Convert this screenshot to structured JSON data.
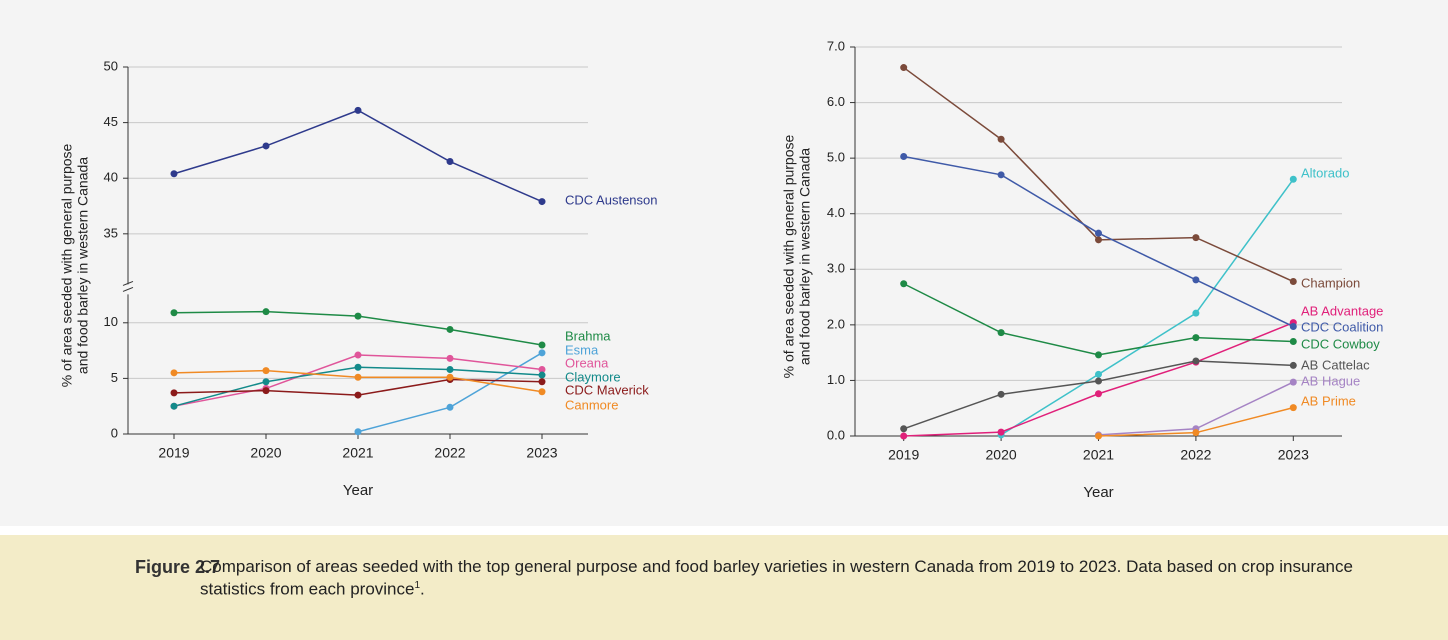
{
  "chart_data": [
    {
      "type": "line",
      "ylabel": [
        "% of area seeded with general purpose",
        "and food barley in western Canada"
      ],
      "xlabel": "Year",
      "categories": [
        "2019",
        "2020",
        "2021",
        "2022",
        "2023"
      ],
      "ylim": [
        0,
        50
      ],
      "ybreak": [
        13,
        30
      ],
      "yticks": [
        0,
        5,
        10,
        35,
        40,
        45,
        50
      ],
      "grid": true,
      "series": [
        {
          "name": "CDC Austenson",
          "color": "#2e3a8c",
          "values": [
            40.4,
            42.9,
            46.1,
            41.5,
            37.9
          ]
        },
        {
          "name": "Brahma",
          "color": "#1e8a46",
          "values": [
            10.9,
            11.0,
            10.6,
            9.4,
            8.0
          ]
        },
        {
          "name": "Esma",
          "color": "#4ea3d8",
          "values": [
            null,
            null,
            0.2,
            2.4,
            7.3
          ]
        },
        {
          "name": "Oreana",
          "color": "#e0559a",
          "values": [
            2.5,
            4.1,
            7.1,
            6.8,
            5.8
          ]
        },
        {
          "name": "Claymore",
          "color": "#138a8a",
          "values": [
            2.5,
            4.7,
            6.0,
            5.8,
            5.3
          ]
        },
        {
          "name": "CDC Maverick",
          "color": "#8b1a1a",
          "values": [
            3.7,
            3.9,
            3.5,
            4.9,
            4.7
          ]
        },
        {
          "name": "Canmore",
          "color": "#f08a24",
          "values": [
            5.5,
            5.7,
            5.1,
            5.1,
            3.8
          ]
        }
      ]
    },
    {
      "type": "line",
      "ylabel": [
        "% of area seeded with general purpose",
        "and food barley in western Canada"
      ],
      "xlabel": "Year",
      "categories": [
        "2019",
        "2020",
        "2021",
        "2022",
        "2023"
      ],
      "ylim": [
        0,
        7
      ],
      "yticks": [
        {
          "value": 0,
          "label": "0.0"
        },
        {
          "value": 1,
          "label": "1.0"
        },
        {
          "value": 2,
          "label": "2.0"
        },
        {
          "value": 3,
          "label": "3.0"
        },
        {
          "value": 4,
          "label": "4.0"
        },
        {
          "value": 5,
          "label": "5.0"
        },
        {
          "value": 6,
          "label": "6.0"
        },
        {
          "value": 7,
          "label": "7.0"
        }
      ],
      "grid": true,
      "series": [
        {
          "name": "Altorado",
          "color": "#3ec1c9",
          "values": [
            null,
            0.02,
            1.11,
            2.21,
            4.62
          ]
        },
        {
          "name": "Champion",
          "color": "#7b4a3a",
          "values": [
            6.63,
            5.34,
            3.53,
            3.57,
            2.78
          ]
        },
        {
          "name": "AB Advantage",
          "color": "#e0207a",
          "values": [
            0.0,
            0.07,
            0.76,
            1.33,
            2.04
          ]
        },
        {
          "name": "CDC Coalition",
          "color": "#3f5aa8",
          "values": [
            5.03,
            4.7,
            3.65,
            2.81,
            1.97
          ]
        },
        {
          "name": "CDC Cowboy",
          "color": "#1e8a46",
          "values": [
            2.74,
            1.86,
            1.46,
            1.77,
            1.7
          ]
        },
        {
          "name": "AB Cattelac",
          "color": "#555555",
          "values": [
            0.13,
            0.75,
            0.99,
            1.35,
            1.27
          ]
        },
        {
          "name": "AB Hague",
          "color": "#a583c4",
          "values": [
            null,
            null,
            0.02,
            0.13,
            0.97
          ]
        },
        {
          "name": "AB Prime",
          "color": "#f08a24",
          "values": [
            null,
            null,
            0.0,
            0.06,
            0.51
          ]
        }
      ]
    }
  ],
  "caption": {
    "label": "Figure 2.7",
    "text": "Comparison of areas seeded with the top general purpose and food barley varieties in western Canada from 2019 to 2023. Data based on crop insurance statistics from each province",
    "footnote_ref": "1",
    "text_end": "."
  }
}
